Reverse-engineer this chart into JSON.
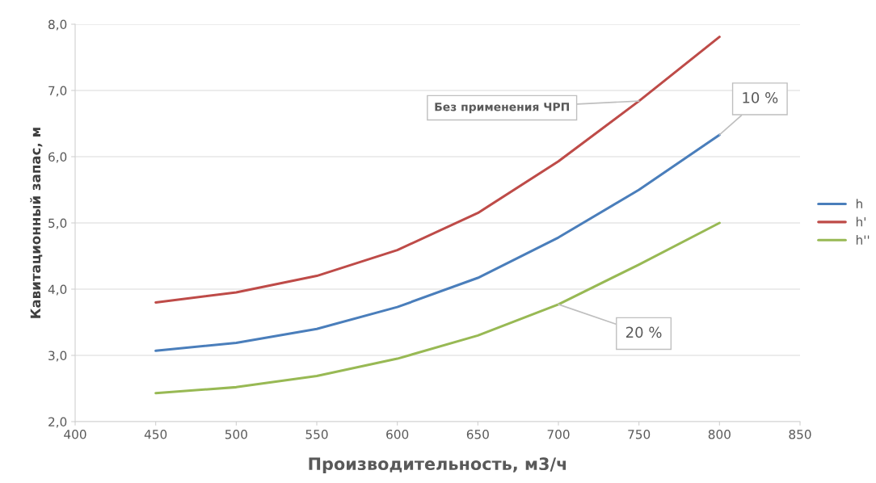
{
  "chart_data": {
    "type": "line",
    "xlabel": "Производительность, м3/ч",
    "ylabel": "Кавитационный запас, м",
    "x": [
      450,
      500,
      550,
      600,
      650,
      700,
      750,
      800
    ],
    "series": [
      {
        "name": "h",
        "color": "#4a7ebb",
        "values": [
          3.07,
          3.19,
          3.4,
          3.73,
          4.17,
          4.78,
          5.5,
          6.33
        ]
      },
      {
        "name": "h'",
        "color": "#be4b48",
        "values": [
          3.8,
          3.95,
          4.2,
          4.59,
          5.15,
          5.93,
          6.84,
          7.81
        ]
      },
      {
        "name": "h''",
        "color": "#98b954",
        "values": [
          2.43,
          2.52,
          2.69,
          2.95,
          3.3,
          3.77,
          4.37,
          5.0
        ]
      }
    ],
    "xlim": [
      400,
      850
    ],
    "xticks": [
      400,
      450,
      500,
      550,
      600,
      650,
      700,
      750,
      800,
      850
    ],
    "ylim": [
      2.0,
      8.0
    ],
    "yticks": [
      {
        "value": 2,
        "label": "2,0"
      },
      {
        "value": 3,
        "label": "3,0"
      },
      {
        "value": 4,
        "label": "4,0"
      },
      {
        "value": 5,
        "label": "5,0"
      },
      {
        "value": 6,
        "label": "6,0"
      },
      {
        "value": 7,
        "label": "7,0"
      },
      {
        "value": 8,
        "label": "8,0"
      }
    ],
    "grid": "y",
    "legend": "right",
    "marker": "none",
    "line_style": "solid",
    "annotations": [
      {
        "text": "Без применения ЧРП",
        "x": 750,
        "y": 6.84
      },
      {
        "text": "10 %",
        "x": 800,
        "y": 6.33
      },
      {
        "text": "20 %",
        "x": 700,
        "y": 3.77
      }
    ]
  }
}
